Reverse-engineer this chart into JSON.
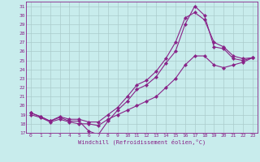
{
  "xlabel": "Windchill (Refroidissement éolien,°C)",
  "bg_color": "#c8ecec",
  "line_color": "#882288",
  "grid_color": "#aacccc",
  "xlim": [
    -0.5,
    23.5
  ],
  "ylim": [
    17,
    31.5
  ],
  "xticks": [
    0,
    1,
    2,
    3,
    4,
    5,
    6,
    7,
    8,
    9,
    10,
    11,
    12,
    13,
    14,
    15,
    16,
    17,
    18,
    19,
    20,
    21,
    22,
    23
  ],
  "yticks": [
    17,
    18,
    19,
    20,
    21,
    22,
    23,
    24,
    25,
    26,
    27,
    28,
    29,
    30,
    31
  ],
  "curve1_x": [
    0,
    1,
    2,
    3,
    4,
    5,
    6,
    7,
    8,
    9,
    10,
    11,
    12,
    13,
    14,
    15,
    16,
    17,
    18,
    19,
    20,
    21,
    22,
    23
  ],
  "curve1_y": [
    19.2,
    18.8,
    18.3,
    18.7,
    18.3,
    18.3,
    17.2,
    16.8,
    18.3,
    19.5,
    20.5,
    21.8,
    22.3,
    23.2,
    24.7,
    26.0,
    29.0,
    31.0,
    30.0,
    26.5,
    26.3,
    25.2,
    25.0,
    25.3
  ],
  "curve2_x": [
    0,
    1,
    2,
    3,
    4,
    5,
    6,
    7,
    8,
    9,
    10,
    11,
    12,
    13,
    14,
    15,
    16,
    17,
    18,
    19,
    20,
    21,
    22,
    23
  ],
  "curve2_y": [
    19.2,
    18.8,
    18.3,
    18.8,
    18.5,
    18.5,
    18.2,
    18.2,
    19.0,
    19.8,
    21.0,
    22.3,
    22.8,
    23.8,
    25.2,
    27.0,
    29.7,
    30.3,
    29.5,
    27.0,
    26.5,
    25.5,
    25.2,
    25.3
  ],
  "curve3_x": [
    0,
    1,
    2,
    3,
    4,
    5,
    6,
    7,
    8,
    9,
    10,
    11,
    12,
    13,
    14,
    15,
    16,
    17,
    18,
    19,
    20,
    21,
    22,
    23
  ],
  "curve3_y": [
    19.0,
    18.7,
    18.2,
    18.5,
    18.2,
    18.0,
    18.0,
    17.8,
    18.5,
    19.0,
    19.5,
    20.0,
    20.5,
    21.0,
    22.0,
    23.0,
    24.5,
    25.5,
    25.5,
    24.5,
    24.2,
    24.5,
    24.8,
    25.3
  ]
}
